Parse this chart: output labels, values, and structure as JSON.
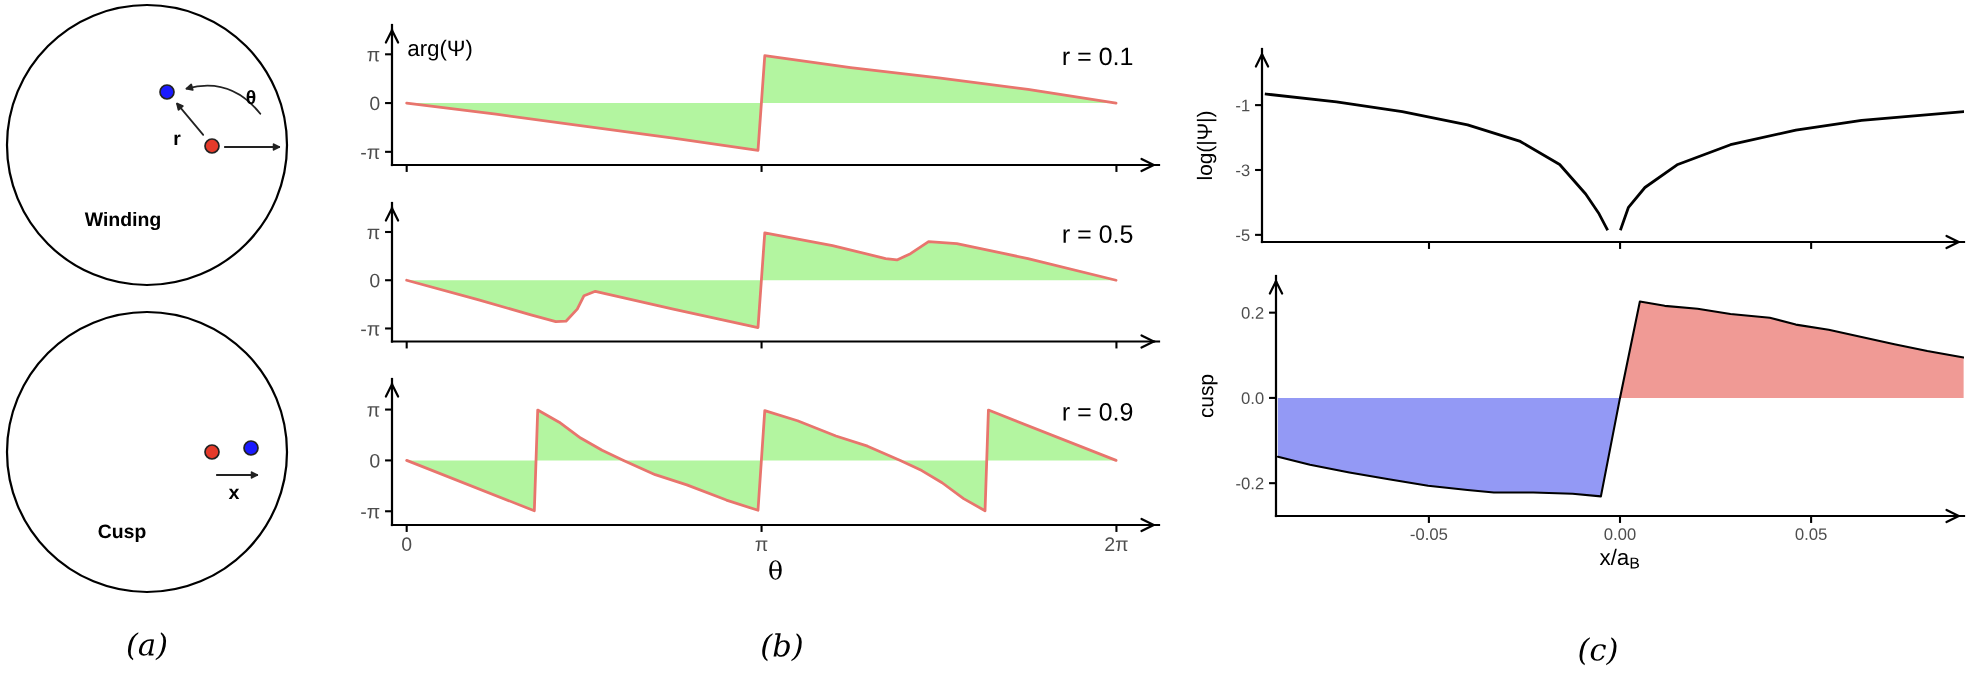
{
  "chart_data": [
    {
      "type": "other",
      "annotations": [
        "r",
        "θ",
        "Winding",
        "x",
        "Cusp",
        "(a)"
      ]
    },
    {
      "type": "area",
      "ylabel": "arg(Ψ)",
      "annotations": [
        "r = 0.1"
      ],
      "tick_labels": "y",
      "xlim": [
        -0.13,
        6.66
      ],
      "ylim": [
        -3.99,
        5.03
      ],
      "xticks": [
        0,
        {
          "value": 3.1416,
          "label": null
        },
        {
          "value": 6.2832,
          "label": null
        }
      ],
      "yticks": [
        {
          "value": -3.1416,
          "label": "-π"
        },
        0,
        {
          "value": 3.1416,
          "label": "π"
        }
      ],
      "x": [
        0,
        0.79,
        1.57,
        2.36,
        3.11,
        3.17,
        3.93,
        4.71,
        5.5,
        6.28
      ],
      "series": [
        {
          "color": "#b3f5a0",
          "values": [
            0,
            -0.72,
            -1.48,
            -2.26,
            -3.05,
            3.05,
            2.29,
            1.63,
            0.88,
            0
          ]
        }
      ]
    },
    {
      "type": "area",
      "annotations": [
        "r = 0.5"
      ],
      "tick_labels": "y",
      "xlim": [
        -0.13,
        6.66
      ],
      "ylim": [
        -3.99,
        5.03
      ],
      "xticks": [
        0,
        {
          "value": 3.1416,
          "label": null
        },
        {
          "value": 6.2832,
          "label": null
        }
      ],
      "yticks": [
        {
          "value": -3.1416,
          "label": "-π"
        },
        0,
        {
          "value": 3.1416,
          "label": "π"
        }
      ],
      "x": [
        0,
        0.63,
        1.1,
        1.32,
        1.41,
        1.51,
        1.57,
        1.67,
        2.36,
        3.11,
        3.17,
        3.77,
        4.24,
        4.34,
        4.46,
        4.62,
        4.87,
        5.5,
        6.28
      ],
      "series": [
        {
          "color": "#b3f5a0",
          "values": [
            0,
            -1.26,
            -2.26,
            -2.7,
            -2.67,
            -1.88,
            -1.01,
            -0.72,
            -1.88,
            -3.08,
            3.08,
            2.26,
            1.41,
            1.32,
            1.73,
            2.51,
            2.39,
            1.41,
            0
          ]
        }
      ]
    },
    {
      "type": "area",
      "xlabel": "θ",
      "annotations": [
        "r = 0.9",
        "(b)"
      ],
      "xlim": [
        -0.13,
        6.66
      ],
      "ylim": [
        -3.99,
        5.03
      ],
      "xticks": [
        0,
        {
          "value": 3.1416,
          "label": "π"
        },
        {
          "value": 6.2832,
          "label": "2π"
        }
      ],
      "yticks": [
        {
          "value": -3.1416,
          "label": "-π"
        },
        0,
        {
          "value": 3.1416,
          "label": "π"
        }
      ],
      "x": [
        0,
        1.13,
        1.16,
        1.35,
        1.54,
        1.73,
        1.92,
        2.2,
        2.48,
        2.83,
        3.11,
        3.17,
        3.46,
        3.8,
        4.08,
        4.37,
        4.56,
        4.74,
        4.93,
        5.12,
        5.15,
        6.28
      ],
      "series": [
        {
          "color": "#b3f5a0",
          "values": [
            0,
            -3.11,
            3.11,
            2.36,
            1.38,
            0.63,
            0,
            -0.88,
            -1.51,
            -2.45,
            -3.08,
            3.08,
            2.45,
            1.51,
            0.88,
            0,
            -0.63,
            -1.38,
            -2.36,
            -3.11,
            3.11,
            0
          ]
        }
      ]
    },
    {
      "type": "line",
      "ylabel": "log(|Ψ|)",
      "tick_labels": "y",
      "xlim": [
        -0.0937,
        0.09
      ],
      "ylim": [
        -5.22,
        0.73
      ],
      "xticks": [
        -0.05,
        {
          "value": 0,
          "label": null
        },
        0.05
      ],
      "yticks": [
        -5,
        -3,
        -1
      ],
      "x": [
        -0.0926,
        -0.0742,
        -0.057,
        -0.0399,
        -0.0261,
        -0.0158,
        -0.009,
        -0.0055,
        -0.0034,
        -0.0016,
        0.0002,
        0.0022,
        0.0065,
        0.0151,
        0.0289,
        0.046,
        0.0632,
        0.0898
      ],
      "series": [
        {
          "color": "#000000",
          "values": [
            -0.66,
            -0.9,
            -1.2,
            -1.61,
            -2.12,
            -2.83,
            -3.74,
            -4.35,
            -4.82,
            null,
            -4.82,
            -4.15,
            -3.54,
            -2.83,
            -2.22,
            -1.77,
            -1.47,
            -1.2
          ]
        }
      ]
    },
    {
      "type": "area",
      "ylabel": "cusp",
      "xlabel": "x/a$_{B}$",
      "annotations": [
        "(c)"
      ],
      "xlim": [
        -0.09,
        0.09
      ],
      "ylim": [
        -0.277,
        0.286
      ],
      "xticks": [
        -0.05,
        {
          "value": 0,
          "label": "0.00"
        },
        0.05
      ],
      "yticks": [
        -0.2,
        {
          "value": 0,
          "label": "0.0"
        },
        0.2
      ],
      "series": [
        {
          "color": "#9399f5",
          "x": [
            -0.0895,
            -0.0811,
            -0.0708,
            -0.0605,
            -0.0502,
            -0.0399,
            -0.033,
            -0.0227,
            -0.0124,
            -0.005,
            0
          ],
          "values": [
            -0.138,
            -0.157,
            -0.175,
            -0.191,
            -0.206,
            -0.216,
            -0.222,
            -0.222,
            -0.225,
            -0.231,
            0
          ]
        },
        {
          "color": "#f09a95",
          "x": [
            0,
            0.0052,
            0.0117,
            0.0203,
            0.0289,
            0.0392,
            0.046,
            0.0546,
            0.0632,
            0.0718,
            0.0804,
            0.0899
          ],
          "values": [
            0,
            0.226,
            0.216,
            0.209,
            0.197,
            0.188,
            0.172,
            0.16,
            0.143,
            0.126,
            0.11,
            0.095
          ]
        }
      ]
    }
  ]
}
